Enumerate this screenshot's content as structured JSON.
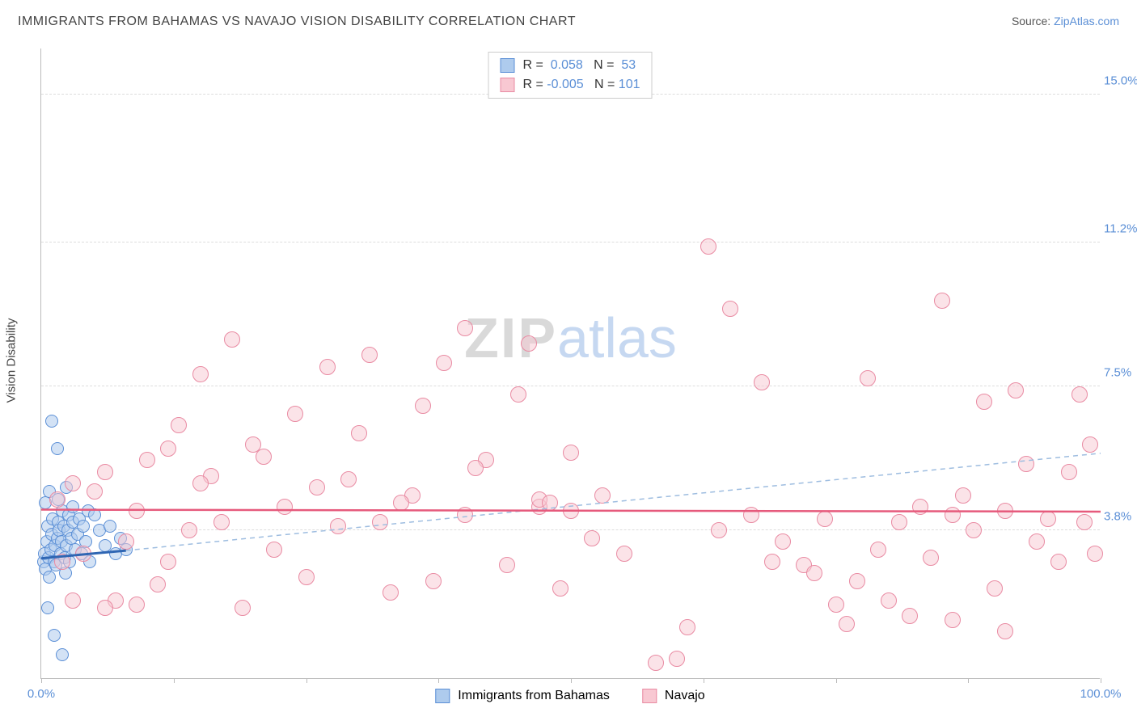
{
  "header": {
    "title": "IMMIGRANTS FROM BAHAMAS VS NAVAJO VISION DISABILITY CORRELATION CHART",
    "source_label": "Source: ",
    "source_name": "ZipAtlas.com"
  },
  "chart": {
    "type": "scatter",
    "background_color": "#ffffff",
    "grid_color": "#dddddd",
    "axis_color": "#bbbbbb",
    "ylabel": "Vision Disability",
    "label_color": "#444444",
    "tick_color": "#5b8fd6",
    "label_fontsize": 15,
    "xlim": [
      0,
      100
    ],
    "ylim": [
      0,
      16.2
    ],
    "yticks": [
      {
        "v": 3.8,
        "label": "3.8%"
      },
      {
        "v": 7.5,
        "label": "7.5%"
      },
      {
        "v": 11.2,
        "label": "11.2%"
      },
      {
        "v": 15.0,
        "label": "15.0%"
      }
    ],
    "xtick_positions": [
      0,
      12.5,
      25,
      37.5,
      50,
      62.5,
      75,
      87.5,
      100
    ],
    "xtick_labels": [
      {
        "v": 0,
        "label": "0.0%"
      },
      {
        "v": 100,
        "label": "100.0%"
      }
    ],
    "legend_top": {
      "rows": [
        {
          "swatch_fill": "#aecbed",
          "swatch_stroke": "#5b8fd6",
          "r_label": "R = ",
          "r_val": " 0.058",
          "n_label": "   N = ",
          "n_val": " 53"
        },
        {
          "swatch_fill": "#f8c8d2",
          "swatch_stroke": "#e98ba3",
          "r_label": "R = ",
          "r_val": "-0.005",
          "n_label": "   N = ",
          "n_val": "101"
        }
      ]
    },
    "legend_bottom": [
      {
        "swatch_fill": "#aecbed",
        "swatch_stroke": "#5b8fd6",
        "label": "Immigrants from Bahamas"
      },
      {
        "swatch_fill": "#f8c8d2",
        "swatch_stroke": "#e98ba3",
        "label": "Navajo"
      }
    ],
    "watermark": {
      "part1": "ZIP",
      "part2": "atlas"
    },
    "series": [
      {
        "name": "bahamas",
        "marker_radius": 8,
        "fill": "rgba(174,203,237,0.55)",
        "stroke": "#5b8fd6",
        "stroke_width": 1,
        "trend": {
          "x1": 0,
          "y1": 3.1,
          "x2": 8,
          "y2": 3.3,
          "solid_color": "#2f66b3",
          "solid_width": 3,
          "dash_x2": 100,
          "dash_y2": 5.8,
          "dash_color": "#9ebde0",
          "dash_width": 1.5,
          "dash": "6,5"
        },
        "points": [
          [
            0.2,
            3.0
          ],
          [
            0.3,
            3.2
          ],
          [
            0.4,
            2.8
          ],
          [
            0.5,
            3.5
          ],
          [
            0.6,
            3.9
          ],
          [
            0.7,
            3.1
          ],
          [
            0.8,
            2.6
          ],
          [
            0.9,
            3.3
          ],
          [
            1.0,
            3.7
          ],
          [
            1.1,
            4.1
          ],
          [
            1.2,
            3.0
          ],
          [
            1.3,
            3.4
          ],
          [
            1.4,
            2.9
          ],
          [
            1.5,
            3.6
          ],
          [
            1.6,
            4.0
          ],
          [
            1.7,
            3.8
          ],
          [
            1.8,
            3.2
          ],
          [
            1.9,
            3.5
          ],
          [
            2.0,
            4.3
          ],
          [
            2.1,
            3.9
          ],
          [
            2.2,
            3.1
          ],
          [
            2.3,
            2.7
          ],
          [
            2.4,
            3.4
          ],
          [
            2.5,
            3.8
          ],
          [
            2.6,
            4.2
          ],
          [
            2.7,
            3.0
          ],
          [
            2.8,
            3.6
          ],
          [
            3.0,
            4.0
          ],
          [
            3.2,
            3.3
          ],
          [
            3.4,
            3.7
          ],
          [
            3.6,
            4.1
          ],
          [
            3.8,
            3.2
          ],
          [
            4.0,
            3.9
          ],
          [
            4.2,
            3.5
          ],
          [
            4.4,
            4.3
          ],
          [
            4.6,
            3.0
          ],
          [
            1.0,
            6.6
          ],
          [
            1.5,
            5.9
          ],
          [
            5.5,
            3.8
          ],
          [
            6.0,
            3.4
          ],
          [
            6.5,
            3.9
          ],
          [
            7.0,
            3.2
          ],
          [
            7.5,
            3.6
          ],
          [
            8.0,
            3.3
          ],
          [
            0.6,
            1.8
          ],
          [
            1.2,
            1.1
          ],
          [
            2.0,
            0.6
          ],
          [
            0.4,
            4.5
          ],
          [
            0.8,
            4.8
          ],
          [
            1.6,
            4.6
          ],
          [
            2.4,
            4.9
          ],
          [
            3.0,
            4.4
          ],
          [
            5.0,
            4.2
          ]
        ]
      },
      {
        "name": "navajo",
        "marker_radius": 10,
        "fill": "rgba(248,200,210,0.5)",
        "stroke": "#e98ba3",
        "stroke_width": 1,
        "trend": {
          "x1": 0,
          "y1": 4.35,
          "x2": 100,
          "y2": 4.3,
          "solid_color": "#e65a7c",
          "solid_width": 2.5
        },
        "points": [
          [
            1.5,
            4.6
          ],
          [
            3,
            5.0
          ],
          [
            4,
            3.2
          ],
          [
            5,
            4.8
          ],
          [
            6,
            5.3
          ],
          [
            7,
            2.0
          ],
          [
            8,
            3.5
          ],
          [
            9,
            4.3
          ],
          [
            10,
            5.6
          ],
          [
            11,
            2.4
          ],
          [
            12,
            5.9
          ],
          [
            13,
            6.5
          ],
          [
            14,
            3.8
          ],
          [
            15,
            7.8
          ],
          [
            16,
            5.2
          ],
          [
            17,
            4.0
          ],
          [
            18,
            8.7
          ],
          [
            19,
            1.8
          ],
          [
            20,
            6.0
          ],
          [
            21,
            5.7
          ],
          [
            22,
            3.3
          ],
          [
            23,
            4.4
          ],
          [
            24,
            6.8
          ],
          [
            25,
            2.6
          ],
          [
            27,
            8.0
          ],
          [
            29,
            5.1
          ],
          [
            30,
            6.3
          ],
          [
            31,
            8.3
          ],
          [
            33,
            2.2
          ],
          [
            35,
            4.7
          ],
          [
            36,
            7.0
          ],
          [
            37,
            2.5
          ],
          [
            38,
            8.1
          ],
          [
            40,
            4.2
          ],
          [
            42,
            5.6
          ],
          [
            44,
            2.9
          ],
          [
            45,
            7.3
          ],
          [
            46,
            8.6
          ],
          [
            47,
            4.4
          ],
          [
            49,
            2.3
          ],
          [
            58,
            0.4
          ],
          [
            60,
            0.5
          ],
          [
            61,
            1.3
          ],
          [
            63,
            11.1
          ],
          [
            64,
            3.8
          ],
          [
            65,
            9.5
          ],
          [
            67,
            4.2
          ],
          [
            68,
            7.6
          ],
          [
            70,
            3.5
          ],
          [
            72,
            2.9
          ],
          [
            74,
            4.1
          ],
          [
            75,
            1.9
          ],
          [
            76,
            1.4
          ],
          [
            77,
            2.5
          ],
          [
            78,
            7.7
          ],
          [
            79,
            3.3
          ],
          [
            80,
            2.0
          ],
          [
            81,
            4.0
          ],
          [
            82,
            1.6
          ],
          [
            83,
            4.4
          ],
          [
            84,
            3.1
          ],
          [
            85,
            9.7
          ],
          [
            86,
            4.2
          ],
          [
            87,
            4.7
          ],
          [
            88,
            3.8
          ],
          [
            89,
            7.1
          ],
          [
            90,
            2.3
          ],
          [
            91,
            4.3
          ],
          [
            92,
            7.4
          ],
          [
            93,
            5.5
          ],
          [
            94,
            3.5
          ],
          [
            95,
            4.1
          ],
          [
            96,
            3.0
          ],
          [
            97,
            5.3
          ],
          [
            98,
            7.3
          ],
          [
            98.5,
            4.0
          ],
          [
            99,
            6.0
          ],
          [
            99.5,
            3.2
          ],
          [
            3,
            2.0
          ],
          [
            50,
            4.3
          ],
          [
            52,
            3.6
          ],
          [
            53,
            4.7
          ],
          [
            55,
            3.2
          ],
          [
            2,
            3.0
          ],
          [
            47,
            4.6
          ],
          [
            40,
            9.0
          ],
          [
            32,
            4.0
          ],
          [
            28,
            3.9
          ],
          [
            91,
            1.2
          ],
          [
            86,
            1.5
          ],
          [
            73,
            2.7
          ],
          [
            69,
            3.0
          ],
          [
            12,
            3.0
          ],
          [
            6,
            1.8
          ],
          [
            48,
            4.5
          ],
          [
            9,
            1.9
          ],
          [
            15,
            5.0
          ],
          [
            50,
            5.8
          ],
          [
            41,
            5.4
          ],
          [
            34,
            4.5
          ],
          [
            26,
            4.9
          ]
        ]
      }
    ]
  }
}
